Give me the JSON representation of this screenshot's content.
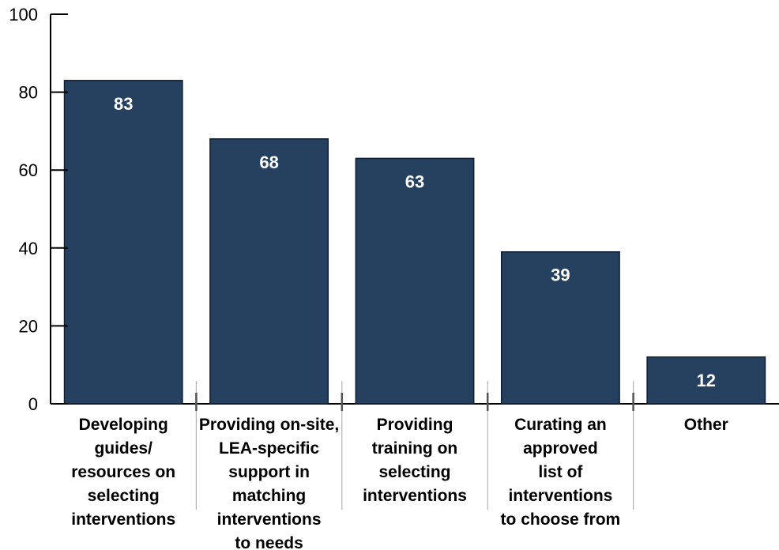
{
  "chart_data": {
    "type": "bar",
    "categories": [
      [
        "Developing",
        "guides/",
        "resources on",
        "selecting",
        "interventions"
      ],
      [
        "Providing on-site,",
        "LEA-specific",
        "support in",
        "matching",
        "interventions",
        "to needs"
      ],
      [
        "Providing",
        "training on",
        "selecting",
        "interventions"
      ],
      [
        "Curating an",
        "approved",
        "list of",
        "interventions",
        "to choose from"
      ],
      [
        "Other"
      ]
    ],
    "values": [
      83,
      68,
      63,
      39,
      12
    ],
    "yticks": [
      "0",
      "20",
      "40",
      "60",
      "80",
      "100"
    ],
    "ylim": [
      0,
      100
    ],
    "grid": false,
    "colors": {
      "bar": "#26405f",
      "bar_edge": "#0f1e30",
      "axis": "#000000",
      "separator": "#b3b3b3"
    }
  }
}
